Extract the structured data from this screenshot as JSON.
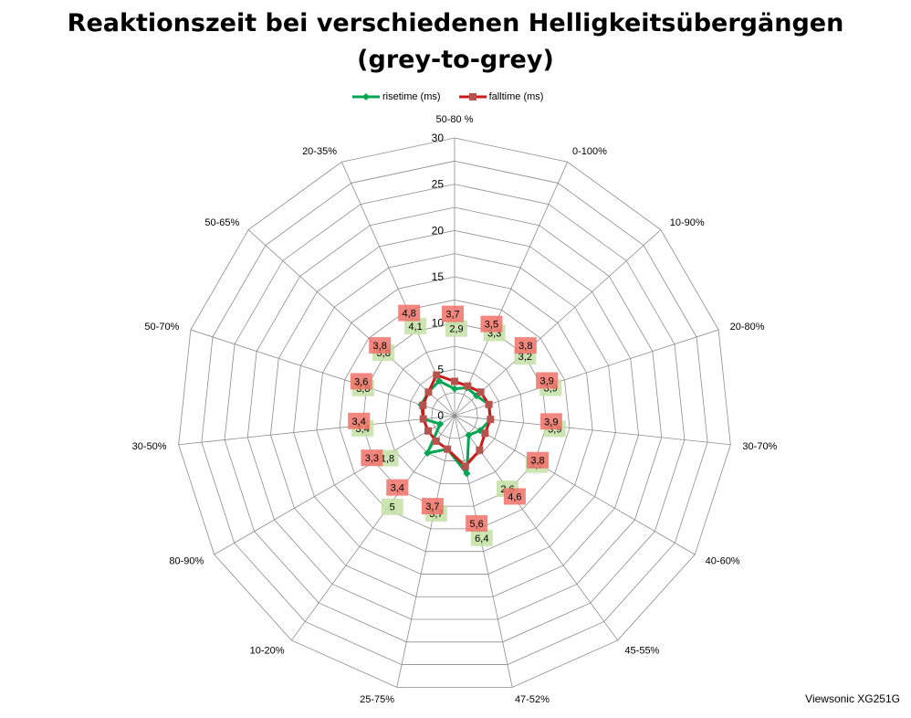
{
  "chart_data": {
    "type": "radar",
    "title_line1": "Reaktionszeit bei verschiedenen Helligkeitsübergängen",
    "title_line2": "(grey-to-grey)",
    "categories": [
      "50-80 %",
      "0-100%",
      "10-90%",
      "20-80%",
      "30-70%",
      "40-60%",
      "45-55%",
      "47-52%",
      "25-75%",
      "10-20%",
      "80-90%",
      "30-50%",
      "50-70%",
      "50-65%",
      "20-35%"
    ],
    "rticks": [
      0,
      5,
      10,
      15,
      20,
      25,
      30
    ],
    "rlim": [
      0,
      30
    ],
    "legend_position": "top",
    "series": [
      {
        "name": "risetime (ms)",
        "color": "#00a651",
        "label_bg": "#c4e0a4",
        "values": [
          2.9,
          3.3,
          3.2,
          3.9,
          3.9,
          3.2,
          2.6,
          6.4,
          3.7,
          5,
          1.8,
          3.4,
          3.8,
          3.8,
          4.1
        ],
        "labels": [
          "2,9",
          "3,3",
          "3,2",
          "3,9",
          "3,9",
          "3,2",
          "2,6",
          "6,4",
          "3,7",
          "5",
          "1,8",
          "3,4",
          "3,8",
          "3,8",
          "4,1"
        ]
      },
      {
        "name": "falltime (ms)",
        "color": "#cc1a1a",
        "label_bg": "#f0726a",
        "values": [
          3.7,
          3.5,
          3.8,
          3.9,
          3.9,
          3.8,
          4.6,
          5.6,
          3.7,
          3.4,
          3.3,
          3.4,
          3.6,
          3.8,
          4.8
        ],
        "labels": [
          "3,7",
          "3,5",
          "3,8",
          "3,9",
          "3,9",
          "3,8",
          "4,6",
          "5,6",
          "3,7",
          "3,4",
          "3,3",
          "3,4",
          "3,6",
          "3,8",
          "4,8"
        ]
      }
    ],
    "watermark": "Viewsonic XG251G"
  }
}
